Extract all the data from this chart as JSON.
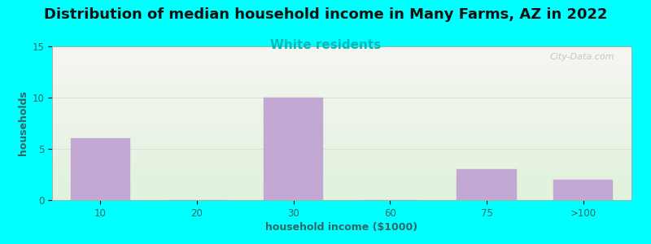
{
  "title": "Distribution of median household income in Many Farms, AZ in 2022",
  "subtitle": "White residents",
  "subtitle_color": "#00BBBB",
  "xlabel": "household income ($1000)",
  "ylabel": "households",
  "categories": [
    "10",
    "20",
    "30",
    "60",
    "75",
    ">100"
  ],
  "values": [
    6,
    0,
    10,
    0,
    3,
    2
  ],
  "bar_color": "#C4A8D4",
  "bar_edgecolor": "#C4A8D4",
  "ylim": [
    0,
    15
  ],
  "yticks": [
    0,
    5,
    10,
    15
  ],
  "background_color": "#00FFFF",
  "plot_bg_top": "#F5F5F0",
  "plot_bg_bottom": "#E0F2DC",
  "grid_color": "#DDDDDD",
  "title_fontsize": 13,
  "subtitle_fontsize": 11,
  "axis_label_fontsize": 9,
  "tick_fontsize": 8.5,
  "watermark": "City-Data.com",
  "watermark_color": "#BBBBBB",
  "axis_label_color": "#336666",
  "tick_color": "#336666"
}
